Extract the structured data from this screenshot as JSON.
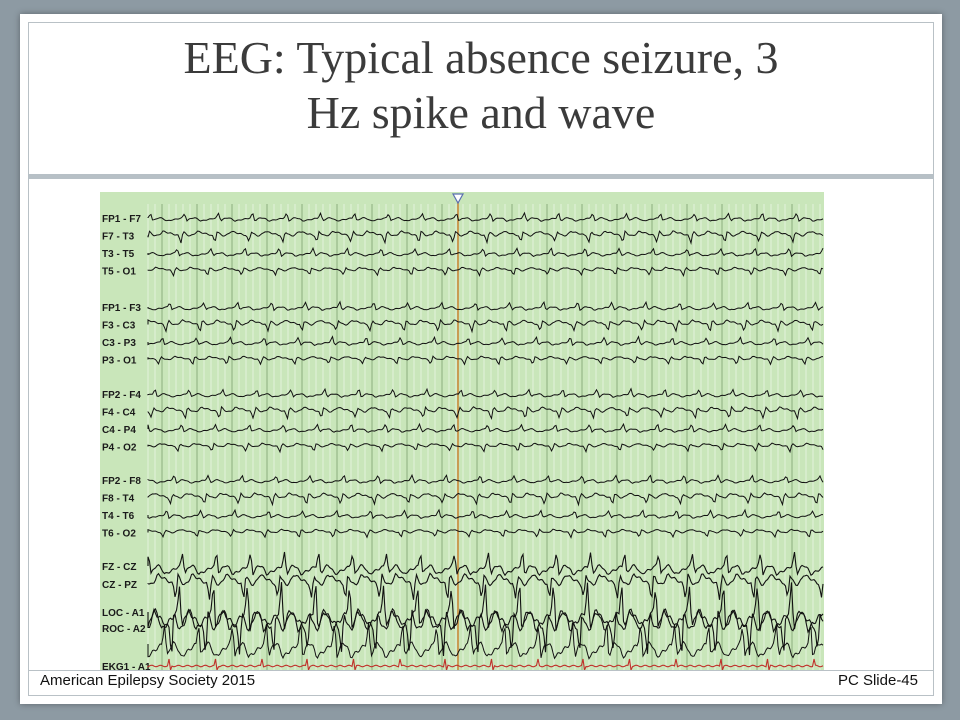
{
  "slide": {
    "title_line1": "EEG: Typical absence seizure, 3",
    "title_line2": "Hz spike and wave",
    "footer_left": "American Epilepsy Society 2015",
    "footer_right": "PC Slide-45"
  },
  "eeg": {
    "background_color": "#c9e6ba",
    "trace_color": "#111111",
    "ekg_color": "#c0302a",
    "marker_color": "#c98a3a",
    "channels": [
      "FP1 - F7",
      "F7 - T3",
      "T3 - T5",
      "T5 - O1",
      "FP1 - F3",
      "F3 - C3",
      "C3 - P3",
      "P3 - O1",
      "FP2 - F4",
      "F4 - C4",
      "C4 - P4",
      "P4 - O2",
      "FP2 - F8",
      "F8 - T4",
      "T4 - T6",
      "T6 - O2",
      "FZ - CZ",
      "CZ - PZ",
      "LOC - A1",
      "ROC - A2",
      "",
      "EKG1 - A1"
    ]
  }
}
